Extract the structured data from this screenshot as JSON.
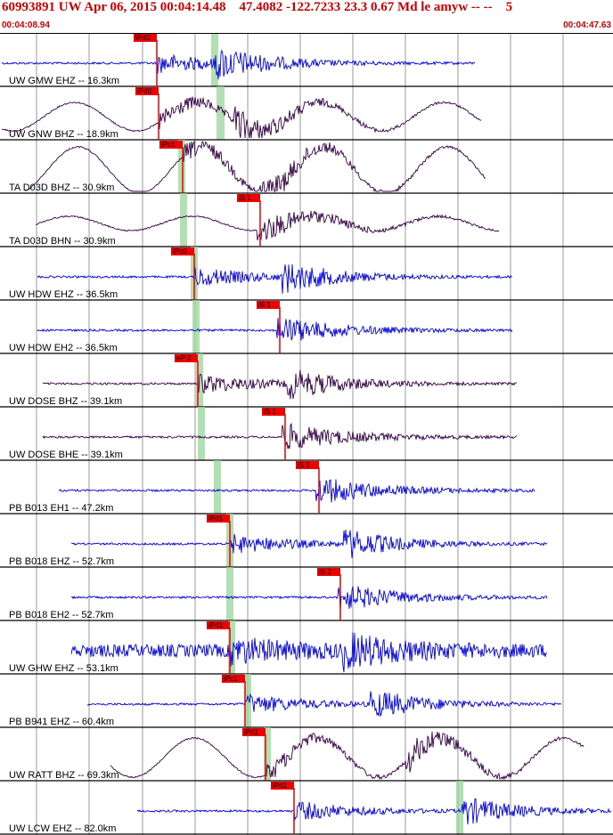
{
  "header": {
    "title": "60993891 UW Apr 06, 2015 00:04:14.48    47.4082 -122.7233 23.3 0.67 Md le amyw -- --    5",
    "start_time": "00:04:08.94",
    "end_time": "00:04:47.63"
  },
  "colors": {
    "header_text": "#cc0000",
    "trace_short_period": "#0000dd",
    "trace_broadband": "#330044",
    "pick_flag": "#ee0000",
    "theoretical_band": "#99d699",
    "timing_line": "#555555"
  },
  "traces": [
    {
      "label": "UW GMW EHZ -- 16.3km",
      "color": "blue",
      "pick": "iPd0",
      "s_pick": ""
    },
    {
      "label": "UW GNW BHZ -- 18.9km",
      "color": "dark",
      "pick": "iPd0",
      "s_pick": ""
    },
    {
      "label": "TA D03D BHZ -- 30.9km",
      "color": "dark",
      "pick": "iPc1",
      "s_pick": ""
    },
    {
      "label": "TA D03D BHN -- 30.9km",
      "color": "dark",
      "pick": "",
      "s_pick": "iS 1"
    },
    {
      "label": "UW HDW EHZ -- 36.5km",
      "color": "blue",
      "pick": "iPc0",
      "s_pick": ""
    },
    {
      "label": "UW HDW EH2 -- 36.5km",
      "color": "blue",
      "pick": "",
      "s_pick": "iS 1"
    },
    {
      "label": "UW DOSE BHZ -- 39.1km",
      "color": "dark",
      "pick": "eP 2",
      "s_pick": ""
    },
    {
      "label": "UW DOSE BHE -- 39.1km",
      "color": "dark",
      "pick": "",
      "s_pick": "iS 1"
    },
    {
      "label": "PB B013 EH1 -- 47.2km",
      "color": "blue",
      "pick": "",
      "s_pick": "iS 1"
    },
    {
      "label": "PB B018 EHZ -- 52.7km",
      "color": "blue",
      "pick": "iPd1",
      "s_pick": ""
    },
    {
      "label": "PB B018 EH2 -- 52.7km",
      "color": "blue",
      "pick": "",
      "s_pick": "iS 2"
    },
    {
      "label": "UW GHW EHZ -- 53.1km",
      "color": "blue",
      "pick": "iPd1",
      "s_pick": ""
    },
    {
      "label": "PB B941 EHZ -- 60.4km",
      "color": "blue",
      "pick": "iPc1",
      "s_pick": ""
    },
    {
      "label": "UW RATT BHZ -- 69.3km",
      "color": "dark",
      "pick": "iPd1",
      "s_pick": ""
    },
    {
      "label": "UW LCW EHZ -- 82.0km",
      "color": "blue",
      "pick": "iPd1",
      "s_pick": ""
    }
  ]
}
